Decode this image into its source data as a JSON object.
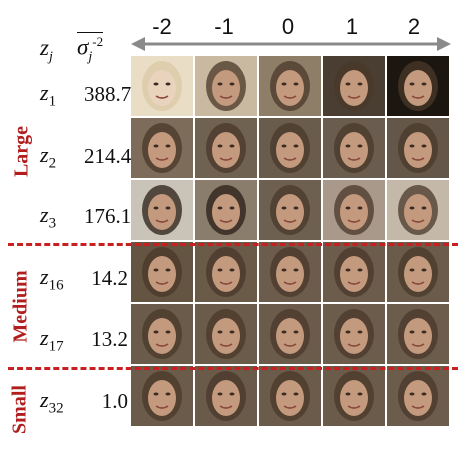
{
  "header": {
    "z_label": "z",
    "z_sub": "j",
    "sigma_label": "σ",
    "sigma_sub": "j",
    "sigma_sup": "-2"
  },
  "columns": [
    "-2",
    "-1",
    "0",
    "1",
    "2"
  ],
  "rows": [
    {
      "z": "z",
      "sub": "1",
      "value": "388.7"
    },
    {
      "z": "z",
      "sub": "2",
      "value": "214.4"
    },
    {
      "z": "z",
      "sub": "3",
      "value": "176.1"
    },
    {
      "z": "z",
      "sub": "16",
      "value": "14.2"
    },
    {
      "z": "z",
      "sub": "17",
      "value": "13.2"
    },
    {
      "z": "z",
      "sub": "32",
      "value": "1.0"
    }
  ],
  "groups": [
    "Large",
    "Medium",
    "Small"
  ],
  "colors": {
    "accent_red": "#c82020",
    "arrow_gray": "#8a8a8a"
  },
  "cell_tones": [
    [
      "#e9ddc6",
      "#c9b9a0",
      "#8e7e68",
      "#4a3e33",
      "#1c1611"
    ],
    [
      "#7d6c5a",
      "#6f6250",
      "#6a5c4c",
      "#6a5c4e",
      "#64574a"
    ],
    [
      "#c9c3b8",
      "#8a7d6c",
      "#6e6051",
      "#a8998a",
      "#c4b8a8"
    ],
    [
      "#645442",
      "#6a5a48",
      "#6b5c4b",
      "#6b5c4c",
      "#6a5b4a"
    ],
    [
      "#6a5b4a",
      "#6b5b4a",
      "#6b5b4b",
      "#6b5c4c",
      "#6b5c4b"
    ],
    [
      "#6b5b4a",
      "#6a5a49",
      "#6b5b4a",
      "#6b5b4a",
      "#6b5c4b"
    ]
  ]
}
